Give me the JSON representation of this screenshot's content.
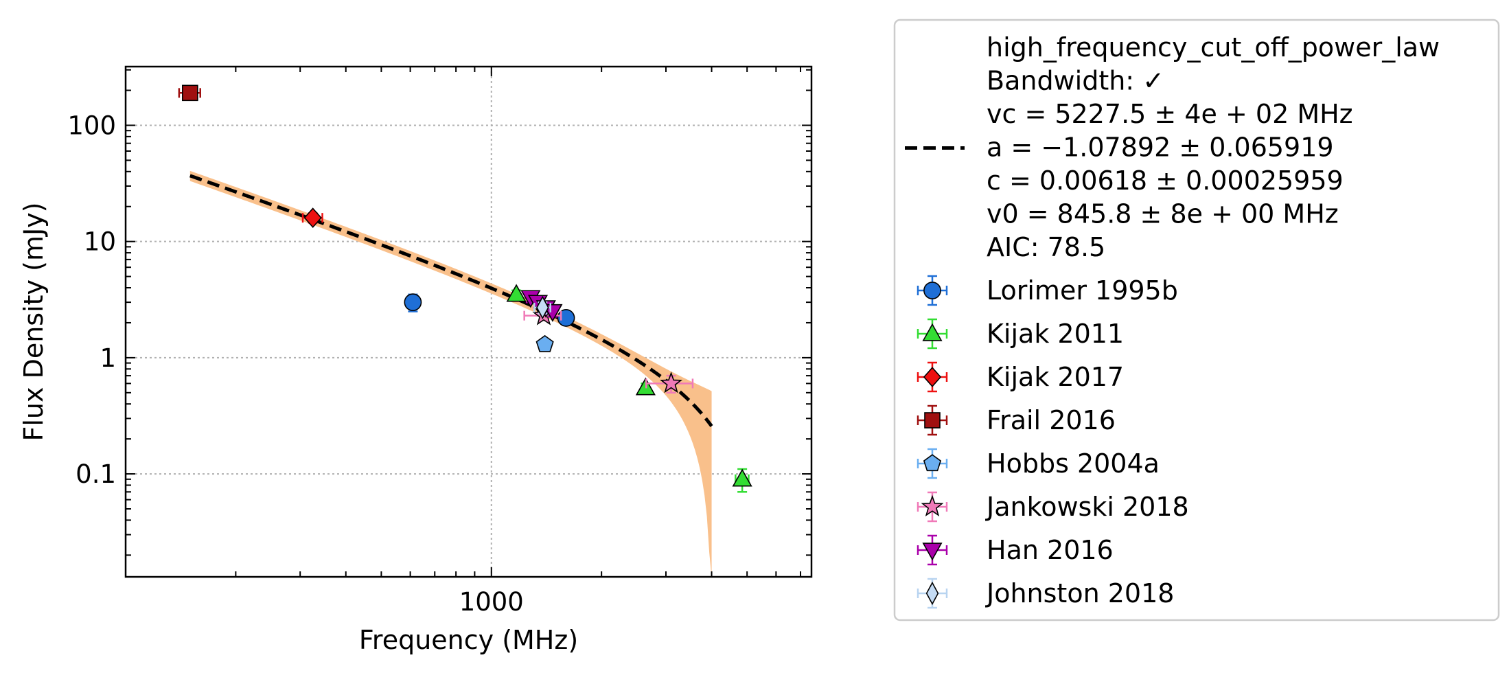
{
  "chart_data": {
    "type": "scatter",
    "xlabel": "Frequency (MHz)",
    "ylabel": "Flux Density (mJy)",
    "x_scale": "log",
    "y_scale": "log",
    "xlim": [
      100,
      7500
    ],
    "ylim": [
      0.013,
      320
    ],
    "x_ticks": [
      {
        "value": 1000,
        "label": "1000"
      }
    ],
    "x_minor_ticks": [
      200,
      300,
      400,
      500,
      600,
      700,
      800,
      900,
      2000,
      3000,
      4000,
      5000,
      6000,
      7000
    ],
    "y_ticks": [
      {
        "value": 0.1,
        "label": "0.1"
      },
      {
        "value": 1,
        "label": "1"
      },
      {
        "value": 10,
        "label": "10"
      },
      {
        "value": 100,
        "label": "100"
      }
    ],
    "grid": true,
    "legend_placement": "outside-right",
    "fit": {
      "model": "high_frequency_cut_off_power_law",
      "color": "#000000",
      "band_color": "#f9c08b",
      "x_range": [
        150,
        4000
      ],
      "legend_lines": [
        "high_frequency_cut_off_power_law",
        "Bandwidth: ✓",
        "vc = 5227.5 ± 4e + 02 MHz",
        "a = −1.07892 ± 0.065919",
        "c = 0.00618 ± 0.00025959",
        "v0 = 845.8 ± 8e + 00 MHz",
        "AIC: 78.5"
      ]
    },
    "series": [
      {
        "name": "Lorimer 1995b",
        "marker": "circle",
        "color": "#1f6fd6",
        "ecolor": "#1f6fd6",
        "points": [
          {
            "x": 610,
            "y": 3.0,
            "yerr": 0.5,
            "xerr": 0
          },
          {
            "x": 1600,
            "y": 2.2,
            "yerr": 0.1,
            "xerr": 0
          }
        ]
      },
      {
        "name": "Kijak 2011",
        "marker": "triangle-up",
        "color": "#33dd33",
        "ecolor": "#33dd33",
        "points": [
          {
            "x": 1170,
            "y": 3.5,
            "yerr": 0.3,
            "xerr": 0
          },
          {
            "x": 2640,
            "y": 0.55,
            "yerr": 0.05,
            "xerr": 0
          },
          {
            "x": 4850,
            "y": 0.09,
            "yerr": 0.02,
            "xerr": 200
          }
        ]
      },
      {
        "name": "Kijak 2017",
        "marker": "diamond",
        "color": "#ee1111",
        "ecolor": "#ee1111",
        "points": [
          {
            "x": 325,
            "y": 16,
            "yerr": 1.5,
            "xerr": 20
          }
        ]
      },
      {
        "name": "Frail 2016",
        "marker": "square",
        "color": "#a01010",
        "ecolor": "#a01010",
        "points": [
          {
            "x": 150,
            "y": 190,
            "yerr": 20,
            "xerr": 10
          }
        ]
      },
      {
        "name": "Hobbs 2004a",
        "marker": "pentagon",
        "color": "#6aaef0",
        "ecolor": "#6aaef0",
        "points": [
          {
            "x": 1400,
            "y": 1.3,
            "yerr": 0.1,
            "xerr": 0
          }
        ]
      },
      {
        "name": "Jankowski 2018",
        "marker": "star",
        "color": "#f07ab8",
        "ecolor": "#f07ab8",
        "points": [
          {
            "x": 1390,
            "y": 2.3,
            "yerr": 0.2,
            "xerr": 160
          },
          {
            "x": 3100,
            "y": 0.6,
            "yerr": 0.1,
            "xerr": 450
          }
        ]
      },
      {
        "name": "Han 2016",
        "marker": "triangle-down",
        "color": "#aa00aa",
        "ecolor": "#aa00aa",
        "points": [
          {
            "x": 1280,
            "y": 3.3,
            "yerr": 0.3,
            "xerr": 0
          },
          {
            "x": 1340,
            "y": 3.0,
            "yerr": 0.3,
            "xerr": 0
          },
          {
            "x": 1410,
            "y": 2.7,
            "yerr": 0.25,
            "xerr": 0
          },
          {
            "x": 1470,
            "y": 2.5,
            "yerr": 0.25,
            "xerr": 0
          }
        ]
      },
      {
        "name": "Johnston 2018",
        "marker": "thin-diamond",
        "color": "#c5dcf5",
        "ecolor": "#b8d4f0",
        "points": [
          {
            "x": 1380,
            "y": 2.7,
            "yerr": 0.3,
            "xerr": 70
          }
        ]
      }
    ]
  }
}
